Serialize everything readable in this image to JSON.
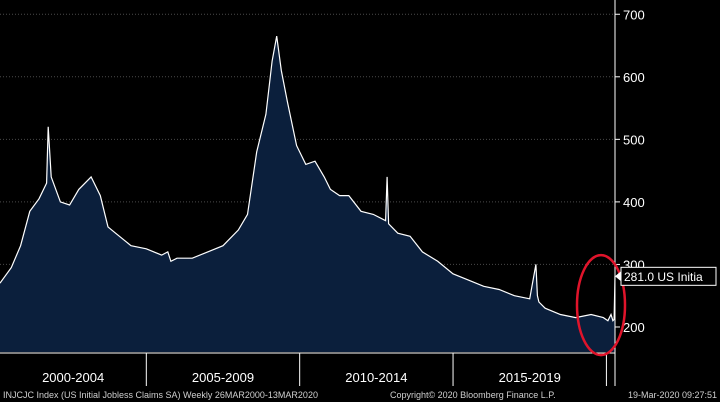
{
  "colors": {
    "background": "#000000",
    "area_fill": "#0b1f3c",
    "line": "#ffffff",
    "gridline": "#4a4a4a",
    "highlight_ellipse": "#e0142b",
    "label_box": "#ffffff"
  },
  "footer": {
    "left": "INJCJC Index (US Initial Jobless Claims SA) Weekly 26MAR2000-13MAR2020",
    "center": "Copyright© 2020 Bloomberg Finance L.P.",
    "right": "19-Mar-2020 09:27:51"
  },
  "chart_data": {
    "type": "area",
    "title": "",
    "xlabel": "",
    "ylabel": "",
    "ylim": [
      160,
      710
    ],
    "xlim": [
      2000.23,
      2020.28
    ],
    "y_ticks": [
      200,
      300,
      400,
      500,
      600,
      700
    ],
    "x_tick_labels": [
      "2000-2004",
      "2005-2009",
      "2010-2014",
      "2015-2019"
    ],
    "x_bands": [
      [
        2000.0,
        2005.0
      ],
      [
        2005.0,
        2010.0
      ],
      [
        2010.0,
        2015.0
      ],
      [
        2015.0,
        2020.0
      ]
    ],
    "grid": "horizontal",
    "series": [
      {
        "x": [
          2000.23,
          2000.6,
          2000.9,
          2001.2,
          2001.5,
          2001.75,
          2001.8,
          2001.9,
          2002.2,
          2002.5,
          2002.8,
          2003.2,
          2003.5,
          2003.75,
          2004.0,
          2004.5,
          2005.0,
          2005.5,
          2005.7,
          2005.8,
          2006.0,
          2006.5,
          2007.0,
          2007.5,
          2008.0,
          2008.3,
          2008.6,
          2008.9,
          2009.1,
          2009.25,
          2009.4,
          2009.6,
          2009.9,
          2010.2,
          2010.5,
          2010.8,
          2011.0,
          2011.3,
          2011.6,
          2012.0,
          2012.4,
          2012.8,
          2012.85,
          2012.9,
          2013.2,
          2013.6,
          2014.0,
          2014.5,
          2015.0,
          2015.5,
          2016.0,
          2016.5,
          2017.0,
          2017.5,
          2017.7,
          2017.75,
          2017.8,
          2018.0,
          2018.5,
          2019.0,
          2019.5,
          2019.9,
          2020.05,
          2020.15,
          2020.21,
          2020.25,
          2020.28
        ],
        "values": [
          270,
          295,
          330,
          385,
          405,
          430,
          520,
          440,
          400,
          395,
          420,
          440,
          410,
          360,
          350,
          330,
          325,
          315,
          320,
          305,
          310,
          310,
          320,
          330,
          355,
          380,
          480,
          540,
          625,
          665,
          610,
          560,
          490,
          460,
          465,
          440,
          420,
          410,
          410,
          385,
          380,
          370,
          440,
          365,
          350,
          345,
          320,
          305,
          285,
          275,
          265,
          260,
          250,
          245,
          300,
          250,
          240,
          230,
          220,
          215,
          220,
          215,
          210,
          220,
          210,
          212,
          281
        ]
      }
    ],
    "last_value_label": "281.0 US Initia"
  }
}
